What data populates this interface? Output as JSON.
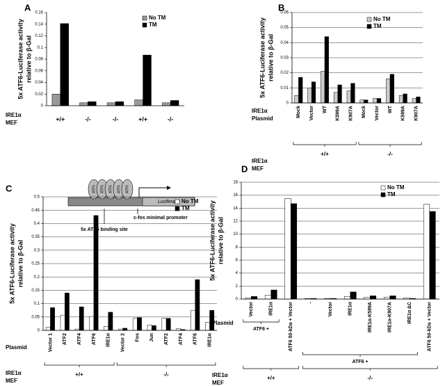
{
  "chart_data": [
    {
      "type": "bar",
      "panel": "A",
      "ylabel": [
        "5x ATF6-Luciferase activity",
        "relative to β-Gal"
      ],
      "categories": [
        "+/+",
        "-/-",
        "-/-",
        "+/+",
        "-/-"
      ],
      "row_title": [
        "IRE1α",
        "MEF"
      ],
      "series": [
        {
          "name": "No TM",
          "color": "#999999",
          "values": [
            0.02,
            0.005,
            0.005,
            0.01,
            0.005
          ]
        },
        {
          "name": "TM",
          "color": "#000000",
          "values": [
            0.141,
            0.007,
            0.007,
            0.087,
            0.009
          ]
        }
      ],
      "ylim": [
        0,
        0.16
      ],
      "yticks": [
        0,
        0.02,
        0.04,
        0.06,
        0.08,
        0.1,
        0.12,
        0.14,
        0.16
      ],
      "grid": false
    },
    {
      "type": "bar",
      "panel": "B",
      "ylabel": [
        "5x ATF6-Luciferase activity",
        "relative to β-Gal"
      ],
      "categories": [
        "Mock",
        "Vector",
        "WT",
        "K599A",
        "K907A",
        "Mock",
        "Vector",
        "WT",
        "K599A",
        "K907A"
      ],
      "row_title": [
        "IRE1α",
        "Plasmid"
      ],
      "group_title": [
        "IRE1α",
        "MEF"
      ],
      "group_labels": [
        "+/+",
        "-/-"
      ],
      "series": [
        {
          "name": "No TM",
          "color": "#cccccc",
          "values": [
            0.005,
            0.01,
            0.021,
            0.007,
            0.008,
            0.002,
            0.003,
            0.016,
            0.005,
            0.003
          ]
        },
        {
          "name": "TM",
          "color": "#000000",
          "values": [
            0.017,
            0.014,
            0.044,
            0.012,
            0.013,
            0.002,
            0.003,
            0.019,
            0.006,
            0.004
          ]
        }
      ],
      "ylim": [
        0,
        0.06
      ],
      "yticks": [
        0,
        0.01,
        0.02,
        0.03,
        0.04,
        0.05,
        0.06
      ],
      "grid": true
    },
    {
      "type": "bar",
      "panel": "C",
      "ylabel": [
        "5x ATF6-Luciferase activity",
        "relative to β-Gal"
      ],
      "categories": [
        "Vector 1",
        "ATF2",
        "ATF4",
        "ATF6",
        "IRE1α",
        "Vector 2",
        "Fos",
        "Jun",
        "ATF2",
        "ATF4",
        "ATF6",
        "IRE1α"
      ],
      "row_title": [
        "Plasmid"
      ],
      "group_title": [
        "IRE1α",
        "MEF"
      ],
      "group_labels": [
        "+/+",
        "-/-"
      ],
      "series": [
        {
          "name": "No TM",
          "color": "#ffffff",
          "values": [
            0.012,
            0.057,
            0.005,
            0.052,
            0.015,
            0.005,
            0.045,
            0.02,
            0.045,
            0.007,
            0.075,
            0.03
          ]
        },
        {
          "name": "TM",
          "color": "#000000",
          "values": [
            0.085,
            0.14,
            0.088,
            0.43,
            0.068,
            0.008,
            0.048,
            0.018,
            0.045,
            0.003,
            0.19,
            0.075
          ]
        }
      ],
      "ylim": [
        0,
        0.5
      ],
      "yticks": [
        0,
        0.05,
        0.1,
        0.15,
        0.2,
        0.25,
        0.3,
        0.35,
        0.4,
        0.45,
        0.5
      ],
      "grid": true
    },
    {
      "type": "bar",
      "panel": "D",
      "ylabel": [
        "5x ATF6-Luciferase activity",
        "relative to β-Gal"
      ],
      "categories": [
        "Vector",
        "IRE1α",
        "ATF6 50-kDa + Vector",
        "-",
        "Vector",
        "IRE1α",
        "IRE1α-K599A",
        "IRE1α-K907A",
        "IRE1α ΔC",
        "ATF6 50-kDa + Vector"
      ],
      "row_title": [
        "Plasmid"
      ],
      "subgroup_labels": [
        "ATF6 +",
        "ATF6 +"
      ],
      "group_title": [
        "IRE1α",
        "MEF"
      ],
      "group_labels": [
        "+/+",
        "-/-"
      ],
      "series": [
        {
          "name": "No TM",
          "color": "#ffffff",
          "values": [
            0.2,
            0.6,
            15.5,
            0.1,
            0.1,
            0.4,
            0.3,
            0.3,
            0.2,
            14.6
          ]
        },
        {
          "name": "TM",
          "color": "#000000",
          "values": [
            0.4,
            1.4,
            14.7,
            0.1,
            0.1,
            1.1,
            0.5,
            0.5,
            0.1,
            13.5
          ]
        }
      ],
      "ylim": [
        0,
        18
      ],
      "yticks": [
        0,
        2,
        4,
        6,
        8,
        10,
        12,
        14,
        16,
        18
      ],
      "grid": true
    }
  ],
  "diagram": {
    "sites": [
      "ATF6",
      "ATF6",
      "ATF6",
      "ATF6",
      "ATF6"
    ],
    "gene": "Luciferase",
    "binding_label": "5x ATF6 binding site",
    "promoter_label": "c-fos minimal promoter"
  }
}
